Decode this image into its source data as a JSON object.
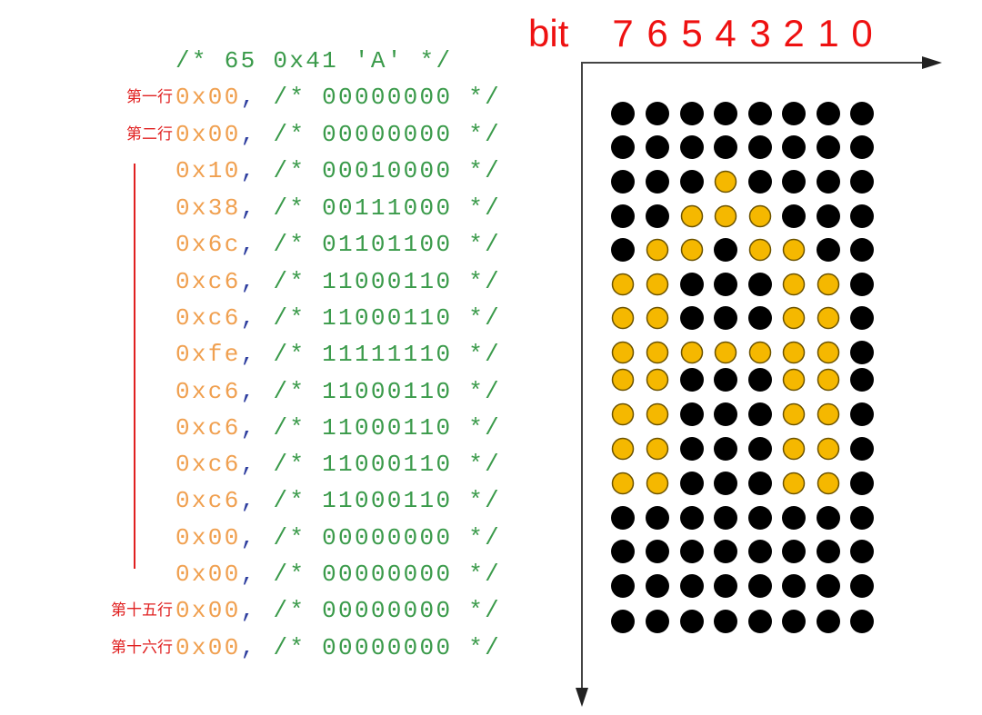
{
  "header_comment": "/* 65 0x41 'A' */",
  "bit_label": "bit",
  "bit_numbers": [
    "7",
    "6",
    "5",
    "4",
    "3",
    "2",
    "1",
    "0"
  ],
  "rows": [
    {
      "label": "第一行",
      "hex": "0x00",
      "comma": ",",
      "comment": "/* 00000000 */"
    },
    {
      "label": "第二行",
      "hex": "0x00",
      "comma": ",",
      "comment": "/* 00000000 */"
    },
    {
      "label": "",
      "hex": "0x10",
      "comma": ",",
      "comment": "/* 00010000 */"
    },
    {
      "label": "",
      "hex": "0x38",
      "comma": ",",
      "comment": "/* 00111000 */"
    },
    {
      "label": "",
      "hex": "0x6c",
      "comma": ",",
      "comment": "/* 01101100 */"
    },
    {
      "label": "",
      "hex": "0xc6",
      "comma": ",",
      "comment": "/* 11000110 */"
    },
    {
      "label": "",
      "hex": "0xc6",
      "comma": ",",
      "comment": "/* 11000110 */"
    },
    {
      "label": "",
      "hex": "0xfe",
      "comma": ",",
      "comment": "/* 11111110 */"
    },
    {
      "label": "",
      "hex": "0xc6",
      "comma": ",",
      "comment": "/* 11000110 */"
    },
    {
      "label": "",
      "hex": "0xc6",
      "comma": ",",
      "comment": "/* 11000110 */"
    },
    {
      "label": "",
      "hex": "0xc6",
      "comma": ",",
      "comment": "/* 11000110 */"
    },
    {
      "label": "",
      "hex": "0xc6",
      "comma": ",",
      "comment": "/* 11000110 */"
    },
    {
      "label": "",
      "hex": "0x00",
      "comma": ",",
      "comment": "/* 00000000 */"
    },
    {
      "label": "",
      "hex": "0x00",
      "comma": ",",
      "comment": "/* 00000000 */"
    },
    {
      "label": "第十五行",
      "hex": "0x00",
      "comma": ",",
      "comment": "/* 00000000 */"
    },
    {
      "label": "第十六行",
      "hex": "0x00",
      "comma": ",",
      "comment": "/* 00000000 */"
    }
  ],
  "colors": {
    "on": "#f5b800",
    "off": "#000000",
    "label": "#e02020",
    "hex": "#f0a050",
    "comment": "#3a9a4a"
  }
}
